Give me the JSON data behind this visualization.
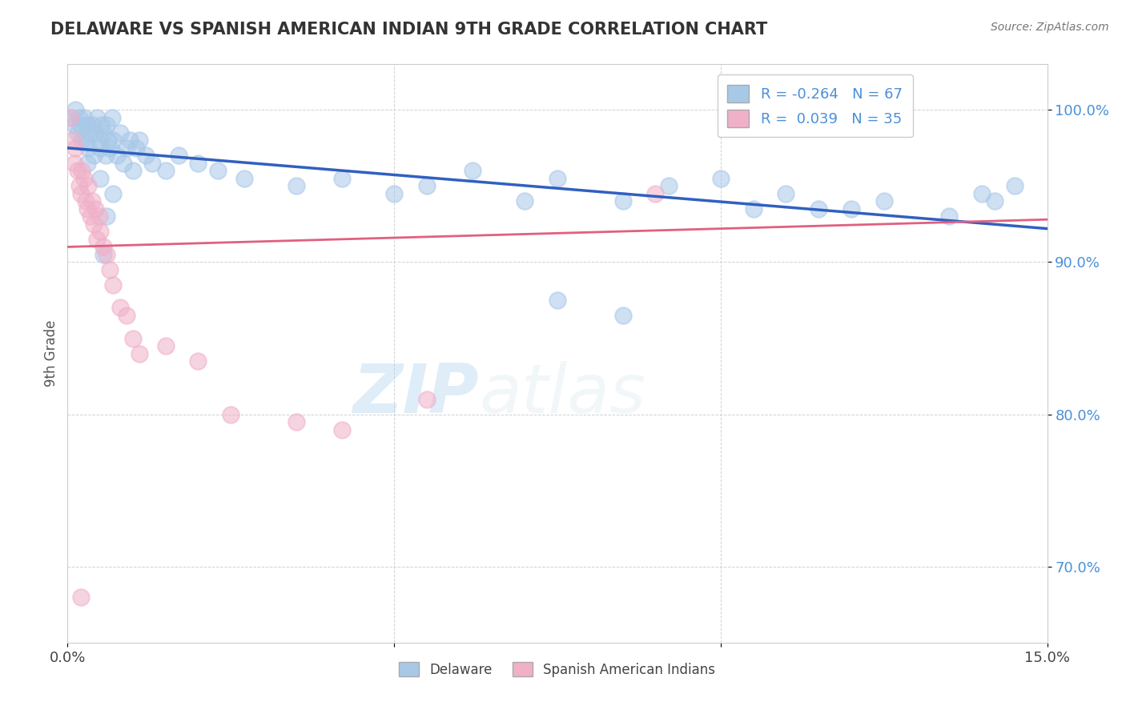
{
  "title": "DELAWARE VS SPANISH AMERICAN INDIAN 9TH GRADE CORRELATION CHART",
  "source_text": "Source: ZipAtlas.com",
  "ylabel": "9th Grade",
  "watermark_zip": "ZIP",
  "watermark_atlas": "atlas",
  "xlim": [
    0.0,
    15.0
  ],
  "ylim": [
    65.0,
    103.0
  ],
  "xticks": [
    0.0,
    5.0,
    10.0,
    15.0
  ],
  "xticklabels": [
    "0.0%",
    "",
    "",
    "15.0%"
  ],
  "ytick_positions": [
    70.0,
    80.0,
    90.0,
    100.0
  ],
  "ytick_labels": [
    "70.0%",
    "80.0%",
    "90.0%",
    "100.0%"
  ],
  "blue_R": -0.264,
  "blue_N": 67,
  "pink_R": 0.039,
  "pink_N": 35,
  "blue_color": "#a8c8e8",
  "pink_color": "#f0b0c8",
  "blue_line_color": "#3060c0",
  "pink_line_color": "#e06080",
  "legend_blue_label": "Delaware",
  "legend_pink_label": "Spanish American Indians",
  "blue_line_x0": 0.0,
  "blue_line_y0": 97.5,
  "blue_line_x1": 15.0,
  "blue_line_y1": 92.2,
  "pink_line_x0": 0.0,
  "pink_line_y0": 91.0,
  "pink_line_x1": 15.0,
  "pink_line_y1": 92.8,
  "blue_x": [
    0.05,
    0.1,
    0.12,
    0.15,
    0.18,
    0.2,
    0.22,
    0.25,
    0.28,
    0.3,
    0.32,
    0.35,
    0.38,
    0.4,
    0.42,
    0.45,
    0.48,
    0.5,
    0.52,
    0.55,
    0.58,
    0.6,
    0.62,
    0.65,
    0.68,
    0.7,
    0.75,
    0.8,
    0.85,
    0.9,
    0.95,
    1.0,
    1.05,
    1.1,
    1.2,
    1.3,
    1.5,
    1.7,
    2.0,
    2.3,
    2.7,
    3.5,
    4.2,
    5.0,
    5.5,
    6.2,
    7.0,
    7.5,
    8.5,
    9.2,
    10.0,
    10.5,
    11.0,
    12.0,
    12.5,
    13.5,
    14.0,
    14.5,
    0.3,
    0.5,
    0.6,
    0.7,
    0.55,
    7.5,
    8.5,
    11.5,
    14.2
  ],
  "blue_y": [
    99.5,
    99.0,
    100.0,
    98.5,
    99.5,
    99.0,
    98.0,
    99.5,
    98.0,
    99.0,
    97.5,
    98.5,
    99.0,
    97.0,
    98.5,
    99.5,
    98.0,
    97.5,
    99.0,
    98.5,
    97.0,
    99.0,
    98.0,
    97.5,
    99.5,
    98.0,
    97.0,
    98.5,
    96.5,
    97.5,
    98.0,
    96.0,
    97.5,
    98.0,
    97.0,
    96.5,
    96.0,
    97.0,
    96.5,
    96.0,
    95.5,
    95.0,
    95.5,
    94.5,
    95.0,
    96.0,
    94.0,
    95.5,
    94.0,
    95.0,
    95.5,
    93.5,
    94.5,
    93.5,
    94.0,
    93.0,
    94.5,
    95.0,
    96.5,
    95.5,
    93.0,
    94.5,
    90.5,
    87.5,
    86.5,
    93.5,
    94.0
  ],
  "pink_x": [
    0.05,
    0.08,
    0.1,
    0.12,
    0.15,
    0.18,
    0.2,
    0.22,
    0.25,
    0.28,
    0.3,
    0.32,
    0.35,
    0.38,
    0.4,
    0.42,
    0.45,
    0.48,
    0.5,
    0.55,
    0.6,
    0.65,
    0.7,
    0.8,
    0.9,
    1.0,
    1.1,
    1.5,
    2.0,
    2.5,
    3.5,
    4.2,
    5.5,
    9.0,
    0.2
  ],
  "pink_y": [
    99.5,
    98.0,
    96.5,
    97.5,
    96.0,
    95.0,
    94.5,
    96.0,
    95.5,
    94.0,
    93.5,
    95.0,
    93.0,
    94.0,
    92.5,
    93.5,
    91.5,
    93.0,
    92.0,
    91.0,
    90.5,
    89.5,
    88.5,
    87.0,
    86.5,
    85.0,
    84.0,
    84.5,
    83.5,
    80.0,
    79.5,
    79.0,
    81.0,
    94.5,
    68.0
  ]
}
